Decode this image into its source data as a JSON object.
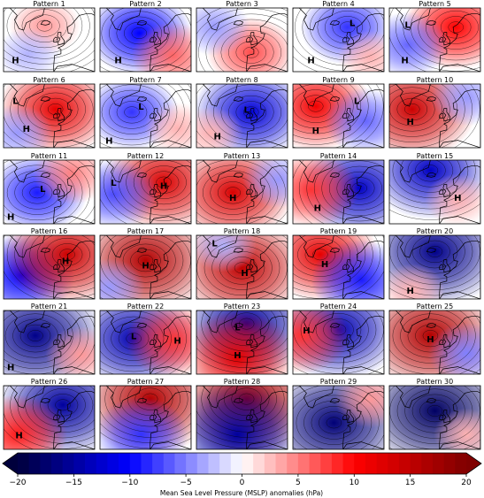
{
  "figure": {
    "colorbar": {
      "ticks": [
        -20,
        -15,
        -10,
        -5,
        0,
        5,
        10,
        15,
        20
      ],
      "tick_labels": [
        "−20",
        "−15",
        "−10",
        "−5",
        "0",
        "5",
        "10",
        "15",
        "20"
      ],
      "range": [
        -20,
        20
      ],
      "extend": "both",
      "label": "Mean Sea Level Pressure (MSLP) anomalies (hPa)",
      "colormap": "seismic",
      "stops": [
        "#00003c",
        "#0000ff",
        "#ffffff",
        "#ff0000",
        "#800000"
      ]
    }
  },
  "chart_data": {
    "type": "heatmap",
    "layout": "grid of 6 rows x 5 columns",
    "panels": [
      {
        "title": "Pattern 1",
        "anomalies": [
          {
            "lon": -20,
            "lat": 63,
            "value": 4
          },
          {
            "lon": -38,
            "lat": 44,
            "value": -3
          }
        ],
        "labels": [
          {
            "text": "H",
            "lon": -52,
            "lat": 40
          }
        ]
      },
      {
        "title": "Pattern 2",
        "anomalies": [
          {
            "lon": -22,
            "lat": 58,
            "value": -10
          },
          {
            "lon": 15,
            "lat": 43,
            "value": 6
          }
        ],
        "labels": [
          {
            "text": "H",
            "lon": -45,
            "lat": 40
          }
        ]
      },
      {
        "title": "Pattern 3",
        "anomalies": [
          {
            "lon": -5,
            "lat": 45,
            "value": 7
          },
          {
            "lon": -45,
            "lat": 62,
            "value": -4
          }
        ],
        "labels": []
      },
      {
        "title": "Pattern 4",
        "anomalies": [
          {
            "lon": -5,
            "lat": 62,
            "value": -8
          },
          {
            "lon": 20,
            "lat": 42,
            "value": 3
          }
        ],
        "labels": [
          {
            "text": "H",
            "lon": -45,
            "lat": 40
          },
          {
            "text": "L",
            "lon": 0,
            "lat": 65
          }
        ]
      },
      {
        "title": "Pattern 5",
        "anomalies": [
          {
            "lon": 8,
            "lat": 62,
            "value": 10
          },
          {
            "lon": -45,
            "lat": 50,
            "value": -6
          }
        ],
        "labels": [
          {
            "text": "L",
            "lon": -45,
            "lat": 64
          },
          {
            "text": "H",
            "lon": -48,
            "lat": 40
          }
        ]
      },
      {
        "title": "Pattern 6",
        "anomalies": [
          {
            "lon": -8,
            "lat": 58,
            "value": 12
          },
          {
            "lon": -50,
            "lat": 42,
            "value": -4
          }
        ],
        "labels": [
          {
            "text": "L",
            "lon": -52,
            "lat": 64
          },
          {
            "text": "H",
            "lon": -40,
            "lat": 45
          }
        ]
      },
      {
        "title": "Pattern 7",
        "anomalies": [
          {
            "lon": -30,
            "lat": 56,
            "value": -8
          },
          {
            "lon": 20,
            "lat": 45,
            "value": 3
          }
        ],
        "labels": [
          {
            "text": "L",
            "lon": -20,
            "lat": 60
          },
          {
            "text": "H",
            "lon": -55,
            "lat": 37
          }
        ]
      },
      {
        "title": "Pattern 8",
        "anomalies": [
          {
            "lon": -5,
            "lat": 56,
            "value": -12
          },
          {
            "lon": -50,
            "lat": 42,
            "value": 3
          }
        ],
        "labels": [
          {
            "text": "L",
            "lon": -10,
            "lat": 58
          },
          {
            "text": "H",
            "lon": -42,
            "lat": 40
          }
        ]
      },
      {
        "title": "Pattern 9",
        "anomalies": [
          {
            "lon": -40,
            "lat": 60,
            "value": 11
          },
          {
            "lon": 15,
            "lat": 50,
            "value": -6
          }
        ],
        "labels": [
          {
            "text": "L",
            "lon": 5,
            "lat": 64
          },
          {
            "text": "H",
            "lon": -40,
            "lat": 44
          }
        ]
      },
      {
        "title": "Pattern 10",
        "anomalies": [
          {
            "lon": -40,
            "lat": 58,
            "value": 14
          },
          {
            "lon": 20,
            "lat": 66,
            "value": -4
          }
        ],
        "labels": [
          {
            "text": "H",
            "lon": -42,
            "lat": 50
          }
        ]
      },
      {
        "title": "Pattern 11",
        "anomalies": [
          {
            "lon": -28,
            "lat": 53,
            "value": -9
          },
          {
            "lon": 10,
            "lat": 66,
            "value": 5
          }
        ],
        "labels": [
          {
            "text": "L",
            "lon": -22,
            "lat": 56
          },
          {
            "text": "H",
            "lon": -57,
            "lat": 37
          }
        ]
      },
      {
        "title": "Pattern 12",
        "anomalies": [
          {
            "lon": 5,
            "lat": 60,
            "value": 13
          },
          {
            "lon": -50,
            "lat": 52,
            "value": -7
          }
        ],
        "labels": [
          {
            "text": "H",
            "lon": 5,
            "lat": 58
          },
          {
            "text": "L",
            "lon": -50,
            "lat": 60
          }
        ]
      },
      {
        "title": "Pattern 13",
        "anomalies": [
          {
            "lon": -25,
            "lat": 53,
            "value": 13
          },
          {
            "lon": 25,
            "lat": 62,
            "value": -4
          }
        ],
        "labels": [
          {
            "text": "H",
            "lon": -25,
            "lat": 50
          }
        ]
      },
      {
        "title": "Pattern 14",
        "anomalies": [
          {
            "lon": 8,
            "lat": 56,
            "value": -13
          },
          {
            "lon": -45,
            "lat": 55,
            "value": 8
          }
        ],
        "labels": [
          {
            "text": "H",
            "lon": -38,
            "lat": 43
          }
        ]
      },
      {
        "title": "Pattern 15",
        "anomalies": [
          {
            "lon": -20,
            "lat": 68,
            "value": -13
          },
          {
            "lon": 10,
            "lat": 48,
            "value": 3
          }
        ],
        "labels": [
          {
            "text": "H",
            "lon": 10,
            "lat": 50
          }
        ]
      },
      {
        "title": "Pattern 16",
        "anomalies": [
          {
            "lon": -45,
            "lat": 48,
            "value": -10
          },
          {
            "lon": 5,
            "lat": 62,
            "value": 14
          }
        ],
        "labels": [
          {
            "text": "H",
            "lon": 3,
            "lat": 58
          }
        ]
      },
      {
        "title": "Pattern 17",
        "anomalies": [
          {
            "lon": -15,
            "lat": 58,
            "value": 16
          },
          {
            "lon": -55,
            "lat": 40,
            "value": -4
          }
        ],
        "labels": [
          {
            "text": "H",
            "lon": -15,
            "lat": 55
          }
        ]
      },
      {
        "title": "Pattern 18",
        "anomalies": [
          {
            "lon": -15,
            "lat": 53,
            "value": 15
          },
          {
            "lon": -35,
            "lat": 68,
            "value": -3
          }
        ],
        "labels": [
          {
            "text": "L",
            "lon": -45,
            "lat": 70
          },
          {
            "text": "H",
            "lon": -12,
            "lat": 50
          }
        ]
      },
      {
        "title": "Pattern 19",
        "anomalies": [
          {
            "lon": -35,
            "lat": 62,
            "value": 12
          },
          {
            "lon": 10,
            "lat": 45,
            "value": -9
          }
        ],
        "labels": [
          {
            "text": "H",
            "lon": -30,
            "lat": 56
          }
        ]
      },
      {
        "title": "Pattern 20",
        "anomalies": [
          {
            "lon": -15,
            "lat": 64,
            "value": -16
          },
          {
            "lon": -40,
            "lat": 38,
            "value": 3
          }
        ],
        "labels": [
          {
            "text": "H",
            "lon": -42,
            "lat": 38
          }
        ]
      },
      {
        "title": "Pattern 21",
        "anomalies": [
          {
            "lon": -30,
            "lat": 58,
            "value": -16
          },
          {
            "lon": 20,
            "lat": 45,
            "value": 4
          }
        ],
        "labels": [
          {
            "text": "H",
            "lon": -57,
            "lat": 37
          }
        ]
      },
      {
        "title": "Pattern 22",
        "anomalies": [
          {
            "lon": -28,
            "lat": 56,
            "value": -14
          },
          {
            "lon": 15,
            "lat": 55,
            "value": 8
          }
        ],
        "labels": [
          {
            "text": "L",
            "lon": -28,
            "lat": 58
          },
          {
            "text": "H",
            "lon": 20,
            "lat": 55
          }
        ]
      },
      {
        "title": "Pattern 23",
        "anomalies": [
          {
            "lon": -10,
            "lat": 66,
            "value": -15
          },
          {
            "lon": -20,
            "lat": 43,
            "value": 12
          }
        ],
        "labels": [
          {
            "text": "L",
            "lon": -20,
            "lat": 64
          },
          {
            "text": "H",
            "lon": -20,
            "lat": 45
          }
        ]
      },
      {
        "title": "Pattern 24",
        "anomalies": [
          {
            "lon": -15,
            "lat": 62,
            "value": -14
          },
          {
            "lon": -55,
            "lat": 58,
            "value": 8
          }
        ],
        "labels": [
          {
            "text": "H",
            "lon": -50,
            "lat": 62
          }
        ]
      },
      {
        "title": "Pattern 25",
        "anomalies": [
          {
            "lon": -20,
            "lat": 58,
            "value": 16
          },
          {
            "lon": 20,
            "lat": 46,
            "value": -5
          }
        ],
        "labels": [
          {
            "text": "H",
            "lon": -20,
            "lat": 56
          }
        ]
      },
      {
        "title": "Pattern 26",
        "anomalies": [
          {
            "lon": 0,
            "lat": 62,
            "value": -15
          },
          {
            "lon": -50,
            "lat": 42,
            "value": 9
          }
        ],
        "labels": [
          {
            "text": "H",
            "lon": -48,
            "lat": 42
          }
        ]
      },
      {
        "title": "Pattern 27",
        "anomalies": [
          {
            "lon": -10,
            "lat": 66,
            "value": 16
          },
          {
            "lon": -20,
            "lat": 42,
            "value": -8
          }
        ],
        "labels": []
      },
      {
        "title": "Pattern 28",
        "anomalies": [
          {
            "lon": -10,
            "lat": 66,
            "value": 17
          },
          {
            "lon": -20,
            "lat": 42,
            "value": -15
          }
        ],
        "labels": []
      },
      {
        "title": "Pattern 29",
        "anomalies": [
          {
            "lon": -20,
            "lat": 50,
            "value": -17
          },
          {
            "lon": 20,
            "lat": 66,
            "value": 4
          }
        ],
        "labels": []
      },
      {
        "title": "Pattern 30",
        "anomalies": [
          {
            "lon": -15,
            "lat": 58,
            "value": -18
          },
          {
            "lon": 20,
            "lat": 42,
            "value": 3
          }
        ],
        "labels": []
      }
    ]
  }
}
